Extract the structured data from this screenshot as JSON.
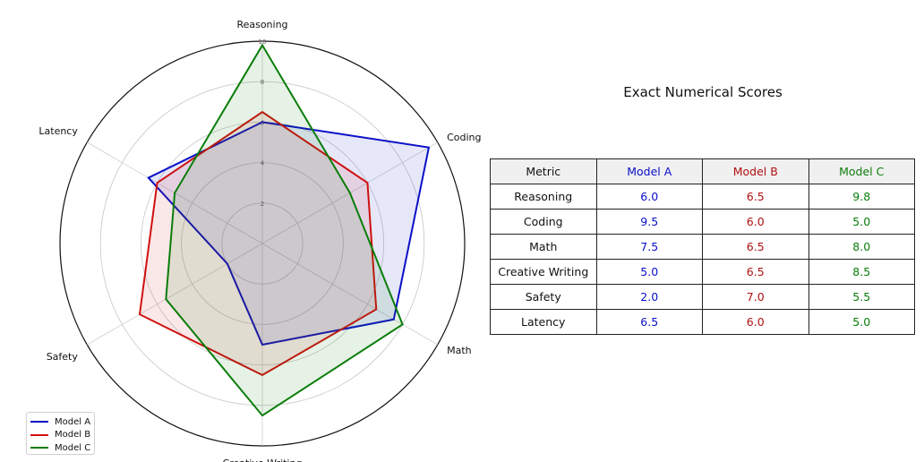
{
  "chart_data": [
    {
      "type": "radar",
      "axes": [
        "Reasoning",
        "Coding",
        "Math",
        "Creative Writing",
        "Safety",
        "Latency"
      ],
      "rlim": [
        0,
        10
      ],
      "rticks": [
        2,
        4,
        6,
        8,
        10
      ],
      "grid": true,
      "legend_position": "bottom-left",
      "series": [
        {
          "name": "Model A",
          "color": "#0a10c8",
          "values": [
            6.0,
            9.5,
            7.5,
            5.0,
            2.0,
            6.5
          ]
        },
        {
          "name": "Model B",
          "color": "#d01010",
          "values": [
            6.5,
            6.0,
            6.5,
            6.5,
            7.0,
            6.0
          ]
        },
        {
          "name": "Model C",
          "color": "#0a7d0a",
          "values": [
            9.8,
            5.0,
            8.0,
            8.5,
            5.5,
            5.0
          ]
        }
      ]
    },
    {
      "type": "table",
      "title": "Exact Numerical Scores",
      "columns": [
        "Metric",
        "Model A",
        "Model B",
        "Model C"
      ],
      "column_colors": [
        "#111111",
        "#0a10c8",
        "#b01010",
        "#0a7d0a"
      ],
      "rows": [
        [
          "Reasoning",
          "6.0",
          "6.5",
          "9.8"
        ],
        [
          "Coding",
          "9.5",
          "6.0",
          "5.0"
        ],
        [
          "Math",
          "7.5",
          "6.5",
          "8.0"
        ],
        [
          "Creative Writing",
          "5.0",
          "6.5",
          "8.5"
        ],
        [
          "Safety",
          "2.0",
          "7.0",
          "5.5"
        ],
        [
          "Latency",
          "6.5",
          "6.0",
          "5.0"
        ]
      ]
    }
  ]
}
